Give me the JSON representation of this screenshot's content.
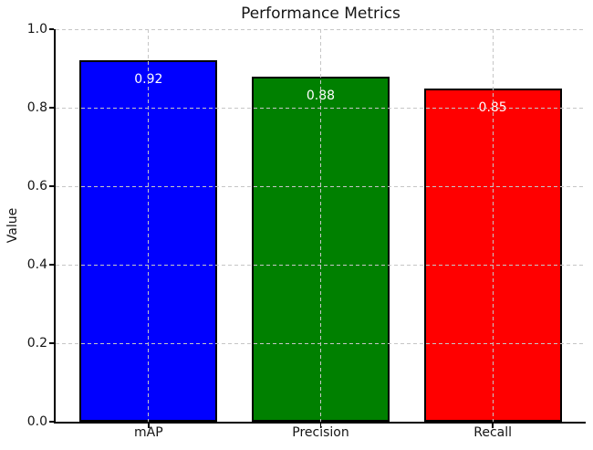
{
  "figure": {
    "background": "#ffffff"
  },
  "chart_data": {
    "type": "bar",
    "title": "Performance Metrics",
    "xlabel": "",
    "ylabel": "Value",
    "categories": [
      "mAP",
      "Precision",
      "Recall"
    ],
    "values": [
      0.92,
      0.88,
      0.85
    ],
    "bar_labels": [
      "0.92",
      "0.88",
      "0.85"
    ],
    "bar_colors": [
      "#0000ff",
      "#008000",
      "#ff0000"
    ],
    "bar_edge_color": "#000000",
    "bar_label_color": "#ffffff",
    "bar_width_fraction": 0.8,
    "ylim": [
      0.0,
      1.0
    ],
    "yticks": [
      0.0,
      0.2,
      0.4,
      0.6,
      0.8,
      1.0
    ],
    "ytick_labels": [
      "0.0",
      "0.2",
      "0.4",
      "0.6",
      "0.8",
      "1.0"
    ],
    "grid": {
      "visible": true,
      "linestyle": "dashed",
      "color": "#c6c6c6",
      "drawn_above_bars": true
    },
    "axis_color": "#000000",
    "text_color": "#151515"
  }
}
